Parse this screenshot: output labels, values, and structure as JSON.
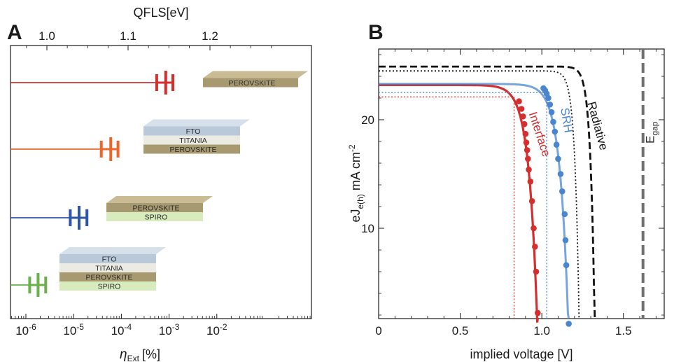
{
  "panels": {
    "a": {
      "letter": "A"
    },
    "b": {
      "letter": "B"
    }
  },
  "chart_data": [
    {
      "type": "scatter",
      "panel": "A",
      "bottom_axis": {
        "label": "ηExt [%]",
        "scale": "log",
        "ticks": [
          {
            "value": 1e-06,
            "base": "10",
            "exp": "-6"
          },
          {
            "value": 1e-05,
            "base": "10",
            "exp": "-5"
          },
          {
            "value": 0.0001,
            "base": "10",
            "exp": "-4"
          },
          {
            "value": 0.001,
            "base": "10",
            "exp": "-3"
          },
          {
            "value": 0.01,
            "base": "10",
            "exp": "-2"
          }
        ],
        "range": [
          5e-07,
          3
        ]
      },
      "top_axis": {
        "label": "QFLS[eV]",
        "ticks": [
          "1.0",
          "1.1",
          "1.2"
        ]
      },
      "grid": false,
      "series": [
        {
          "color": "#d32f2f",
          "eta_values": [
            0.00055,
            0.00085,
            0.0012
          ],
          "layers": [
            "PEROVSKITE"
          ]
        },
        {
          "color": "#e8672c",
          "eta_values": [
            3.8e-05,
            6e-05,
            8.5e-05
          ],
          "layers": [
            "FTO",
            "TITANIA",
            "PEROVSKITE"
          ]
        },
        {
          "color": "#2c55a8",
          "eta_values": [
            8.5e-06,
            1.3e-05,
            1.9e-05
          ],
          "layers": [
            "PEROVSKITE",
            "SPIRO"
          ]
        },
        {
          "color": "#6ab04c",
          "eta_values": [
            1.2e-06,
            1.8e-06,
            2.6e-06
          ],
          "layers": [
            "FTO",
            "TITANIA",
            "PEROVSKITE",
            "SPIRO"
          ]
        }
      ]
    },
    {
      "type": "line",
      "panel": "B",
      "xlabel": "implied voltage [V]",
      "ylabel_main": "eJ",
      "ylabel_sub": "e(h)",
      "ylabel_unit": "mA cm",
      "ylabel_exp": "-2",
      "xlim": [
        0,
        1.75
      ],
      "ylim": [
        1,
        26
      ],
      "xticks": [
        0,
        0.5,
        1.0,
        1.5
      ],
      "xtick_labels": [
        "0",
        "0.5",
        "1.0",
        "1.5"
      ],
      "yticks": [
        10,
        20
      ],
      "ytick_labels": [
        "10",
        "20"
      ],
      "egap": {
        "label": "E",
        "sub": "gap",
        "x": 1.62
      },
      "series": [
        {
          "name": "Interface",
          "color": "#d32f2f",
          "jsc": 23.2,
          "voc": 0.975,
          "n": 2.0,
          "vt_cut": 0.83,
          "j_cut": 22.1,
          "points": [
            [
              0.86,
              21.7
            ],
            [
              0.875,
              21.0
            ],
            [
              0.885,
              20.3
            ],
            [
              0.893,
              19.6
            ],
            [
              0.9,
              18.7
            ],
            [
              0.905,
              17.9
            ],
            [
              0.91,
              17.2
            ],
            [
              0.915,
              16.4
            ],
            [
              0.92,
              15.4
            ],
            [
              0.93,
              14.3
            ],
            [
              0.94,
              12.5
            ],
            [
              0.95,
              10.0
            ],
            [
              0.958,
              8.3
            ],
            [
              0.965,
              6.0
            ],
            [
              0.975,
              2.2
            ]
          ]
        },
        {
          "name": "SRH",
          "color": "#4a86cf",
          "jsc": 23.3,
          "voc": 1.165,
          "n": 2.0,
          "vt_cut": 1.03,
          "j_cut": 22.5,
          "points": [
            [
              1.01,
              22.9
            ],
            [
              1.02,
              22.7
            ],
            [
              1.03,
              22.4
            ],
            [
              1.04,
              22.0
            ],
            [
              1.05,
              21.4
            ],
            [
              1.06,
              20.7
            ],
            [
              1.07,
              19.8
            ],
            [
              1.08,
              18.9
            ],
            [
              1.09,
              17.7
            ],
            [
              1.1,
              16.4
            ],
            [
              1.115,
              15.0
            ],
            [
              1.125,
              13.4
            ],
            [
              1.14,
              11.3
            ],
            [
              1.145,
              8.9
            ],
            [
              1.15,
              6.6
            ],
            [
              1.165,
              1.2
            ]
          ]
        },
        {
          "name": "Radiative",
          "color": "#111111",
          "jsc": 24.9,
          "voc": 1.325,
          "n": 1.0,
          "dash": "dashed"
        },
        {
          "name": "",
          "color": "#111111",
          "jsc": 24.5,
          "voc": 1.23,
          "n": 1.0,
          "dash": "dotted"
        }
      ]
    }
  ]
}
